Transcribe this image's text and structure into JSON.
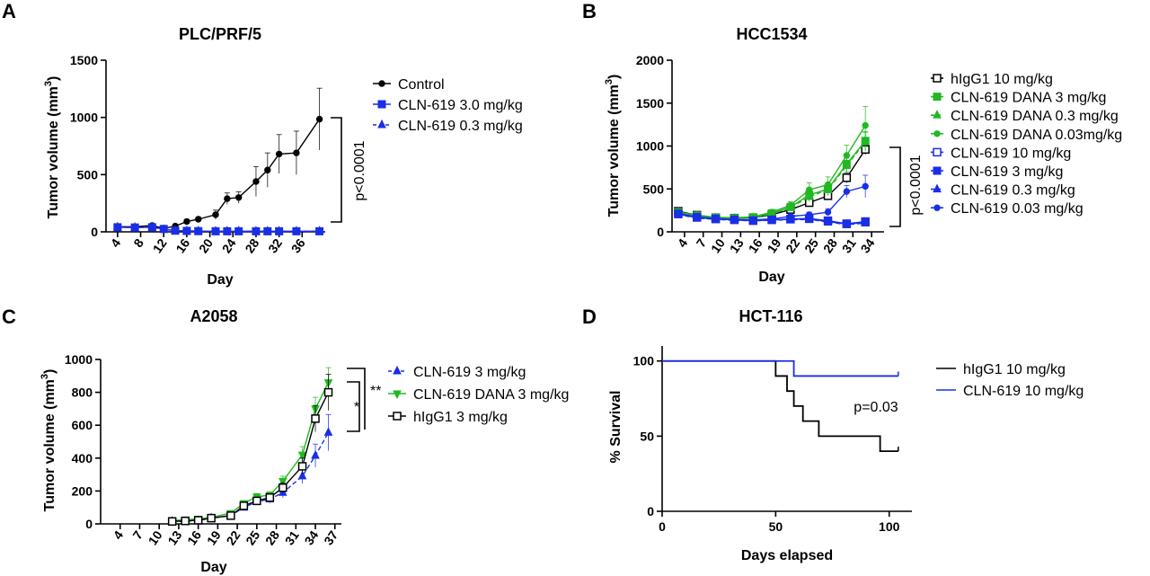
{
  "chart_data": [
    {
      "panel": "A",
      "type": "line",
      "title": "PLC/PRF/5",
      "xlabel": "Day",
      "ylabel": "Tumor volume (mm³)",
      "xlim": [
        2,
        40
      ],
      "ylim": [
        0,
        1500
      ],
      "xticks": [
        4,
        8,
        12,
        16,
        20,
        24,
        28,
        32,
        36
      ],
      "yticks": [
        0,
        500,
        1000,
        1500
      ],
      "series": [
        {
          "name": "Control",
          "color": "#000000",
          "marker": "circle",
          "dash": false,
          "x": [
            4,
            7,
            10,
            12,
            14,
            16,
            18,
            21,
            23,
            25,
            28,
            30,
            32,
            35,
            39
          ],
          "y": [
            45,
            45,
            55,
            30,
            50,
            90,
            110,
            150,
            290,
            300,
            440,
            540,
            680,
            690,
            985
          ],
          "err": [
            15,
            12,
            15,
            10,
            15,
            20,
            20,
            40,
            50,
            50,
            130,
            150,
            170,
            190,
            270
          ]
        },
        {
          "name": "CLN-619 3.0 mg/kg",
          "color": "#1a2ee6",
          "marker": "square",
          "dash": false,
          "x": [
            4,
            7,
            10,
            12,
            14,
            16,
            18,
            21,
            23,
            25,
            28,
            30,
            32,
            35,
            39
          ],
          "y": [
            40,
            38,
            40,
            25,
            10,
            8,
            6,
            5,
            5,
            5,
            5,
            5,
            5,
            5,
            5
          ],
          "err": [
            10,
            8,
            8,
            6,
            4,
            3,
            2,
            2,
            2,
            2,
            2,
            2,
            2,
            2,
            2
          ]
        },
        {
          "name": "CLN-619 0.3 mg/kg",
          "color": "#1a2ee6",
          "marker": "triangle",
          "dash": true,
          "x": [
            4,
            7,
            10,
            12,
            14,
            16,
            18,
            21,
            23,
            25,
            28,
            30,
            32,
            35,
            39
          ],
          "y": [
            40,
            38,
            40,
            20,
            12,
            8,
            6,
            5,
            5,
            5,
            5,
            5,
            5,
            5,
            5
          ],
          "err": [
            10,
            8,
            8,
            6,
            4,
            3,
            2,
            2,
            2,
            2,
            2,
            2,
            2,
            2,
            2
          ]
        }
      ],
      "annotation": "p<0.0001"
    },
    {
      "panel": "B",
      "type": "line",
      "title": "HCC1534",
      "xlabel": "Day",
      "ylabel": "Tumor volume (mm³)",
      "xlim": [
        2,
        36
      ],
      "ylim": [
        0,
        2000
      ],
      "xticks": [
        4,
        7,
        10,
        13,
        16,
        19,
        22,
        25,
        28,
        31,
        34
      ],
      "yticks": [
        0,
        500,
        1000,
        1500,
        2000
      ],
      "series": [
        {
          "name": "hIgG1 10 mg/kg",
          "color": "#000000",
          "marker": "open-square",
          "dash": false,
          "x": [
            3,
            6,
            9,
            12,
            15,
            18,
            21,
            24,
            27,
            30,
            33
          ],
          "y": [
            240,
            195,
            165,
            160,
            165,
            200,
            260,
            340,
            420,
            630,
            960
          ],
          "err": [
            25,
            20,
            20,
            20,
            20,
            25,
            30,
            40,
            50,
            60,
            60
          ]
        },
        {
          "name": "CLN-619 DANA 3 mg/kg",
          "color": "#22b822",
          "marker": "square",
          "dash": false,
          "x": [
            3,
            6,
            9,
            12,
            15,
            18,
            21,
            24,
            27,
            30,
            33
          ],
          "y": [
            230,
            190,
            165,
            160,
            170,
            215,
            290,
            430,
            500,
            790,
            1060
          ],
          "err": [
            25,
            20,
            20,
            20,
            20,
            30,
            40,
            60,
            70,
            90,
            110
          ]
        },
        {
          "name": "CLN-619 DANA 0.3 mg/kg",
          "color": "#22b822",
          "marker": "triangle",
          "dash": true,
          "x": [
            3,
            6,
            9,
            12,
            15,
            18,
            21,
            24,
            27,
            30,
            33
          ],
          "y": [
            225,
            185,
            160,
            155,
            165,
            210,
            280,
            410,
            490,
            770,
            1050
          ],
          "err": [
            25,
            20,
            20,
            20,
            20,
            30,
            40,
            60,
            70,
            90,
            110
          ]
        },
        {
          "name": "CLN-619 DANA 0.03mg/kg",
          "color": "#22b822",
          "marker": "circle",
          "dash": false,
          "x": [
            3,
            6,
            9,
            12,
            15,
            18,
            21,
            24,
            27,
            30,
            33
          ],
          "y": [
            230,
            195,
            170,
            165,
            175,
            230,
            310,
            490,
            550,
            890,
            1240
          ],
          "err": [
            25,
            20,
            20,
            20,
            20,
            30,
            40,
            80,
            90,
            120,
            220
          ]
        },
        {
          "name": "CLN-619 10 mg/kg",
          "color": "#1a2ee6",
          "marker": "open-square",
          "dash": false,
          "x": [
            3,
            6,
            9,
            12,
            15,
            18,
            21,
            24,
            27,
            30,
            33
          ],
          "y": [
            210,
            170,
            150,
            140,
            130,
            140,
            150,
            155,
            130,
            95,
            120
          ],
          "err": [
            20,
            20,
            20,
            20,
            20,
            20,
            20,
            20,
            20,
            15,
            20
          ]
        },
        {
          "name": "CLN-619 3 mg/kg",
          "color": "#1a2ee6",
          "marker": "square",
          "dash": false,
          "x": [
            3,
            6,
            9,
            12,
            15,
            18,
            21,
            24,
            27,
            30,
            33
          ],
          "y": [
            205,
            165,
            150,
            140,
            130,
            140,
            145,
            150,
            120,
            90,
            110
          ],
          "err": [
            20,
            20,
            20,
            20,
            20,
            20,
            20,
            20,
            20,
            15,
            20
          ]
        },
        {
          "name": "CLN-619 0.3 mg/kg",
          "color": "#1a2ee6",
          "marker": "triangle",
          "dash": true,
          "x": [
            3,
            6,
            9,
            12,
            15,
            18,
            21,
            24,
            27,
            30,
            33
          ],
          "y": [
            200,
            160,
            145,
            135,
            128,
            135,
            140,
            145,
            115,
            85,
            100
          ],
          "err": [
            20,
            20,
            20,
            20,
            20,
            20,
            20,
            20,
            20,
            15,
            20
          ]
        },
        {
          "name": "CLN-619 0.03 mg/kg",
          "color": "#1a2ee6",
          "marker": "circle",
          "dash": false,
          "x": [
            3,
            6,
            9,
            12,
            15,
            18,
            21,
            24,
            27,
            30,
            33
          ],
          "y": [
            215,
            175,
            155,
            145,
            140,
            150,
            180,
            200,
            230,
            470,
            530
          ],
          "err": [
            20,
            20,
            20,
            20,
            20,
            20,
            25,
            30,
            40,
            70,
            130
          ]
        }
      ],
      "annotation": "p<0.0001"
    },
    {
      "panel": "C",
      "type": "line",
      "title": "A2058",
      "xlabel": "Day",
      "ylabel": "Tumor volume (mm³)",
      "xlim": [
        1,
        38
      ],
      "ylim": [
        0,
        1000
      ],
      "xticks": [
        4,
        7,
        10,
        13,
        16,
        19,
        22,
        25,
        28,
        31,
        34,
        37
      ],
      "yticks": [
        0,
        200,
        400,
        600,
        800,
        1000
      ],
      "series": [
        {
          "name": "CLN-619 3 mg/kg",
          "color": "#1a2ee6",
          "marker": "triangle",
          "dash": true,
          "x": [
            12,
            14,
            16,
            18,
            21,
            23,
            25,
            27,
            29,
            32,
            34,
            36
          ],
          "y": [
            15,
            15,
            20,
            35,
            50,
            100,
            135,
            150,
            190,
            290,
            415,
            555
          ],
          "err": [
            5,
            5,
            5,
            8,
            10,
            15,
            20,
            25,
            30,
            45,
            70,
            110
          ]
        },
        {
          "name": "CLN-619 DANA 3 mg/kg",
          "color": "#22b822",
          "marker": "triangle-down",
          "dash": false,
          "x": [
            12,
            14,
            16,
            18,
            21,
            23,
            25,
            27,
            29,
            32,
            34,
            36
          ],
          "y": [
            20,
            25,
            30,
            40,
            65,
            125,
            165,
            175,
            260,
            420,
            700,
            860
          ],
          "err": [
            5,
            5,
            5,
            8,
            10,
            15,
            20,
            20,
            30,
            50,
            70,
            90
          ]
        },
        {
          "name": "hIgG1 3 mg/kg",
          "color": "#000000",
          "marker": "open-square",
          "dash": false,
          "x": [
            12,
            14,
            16,
            18,
            21,
            23,
            25,
            27,
            29,
            32,
            34,
            36
          ],
          "y": [
            15,
            18,
            22,
            35,
            50,
            110,
            140,
            160,
            220,
            350,
            640,
            800
          ],
          "err": [
            5,
            5,
            5,
            8,
            10,
            15,
            20,
            20,
            30,
            50,
            80,
            110
          ]
        }
      ],
      "annotations": [
        "*",
        "**"
      ]
    },
    {
      "panel": "D",
      "type": "line",
      "title": "HCT-116",
      "xlabel": "Days elapsed",
      "ylabel": "% Survival",
      "xlim": [
        0,
        110
      ],
      "ylim": [
        0,
        110
      ],
      "xticks": [
        0,
        50,
        100
      ],
      "yticks": [
        0,
        50,
        100
      ],
      "step": true,
      "series": [
        {
          "name": "hIgG1 10 mg/kg",
          "color": "#000000",
          "x": [
            0,
            50,
            50,
            55,
            55,
            58,
            58,
            62,
            62,
            69,
            69,
            96,
            96,
            104
          ],
          "y": [
            100,
            100,
            90,
            90,
            80,
            80,
            70,
            70,
            60,
            60,
            50,
            50,
            40,
            40
          ]
        },
        {
          "name": "CLN-619 10 mg/kg",
          "color": "#1a2ee6",
          "x": [
            0,
            58,
            58,
            104
          ],
          "y": [
            100,
            100,
            90,
            90
          ]
        }
      ],
      "annotation": "p=0.03"
    }
  ]
}
